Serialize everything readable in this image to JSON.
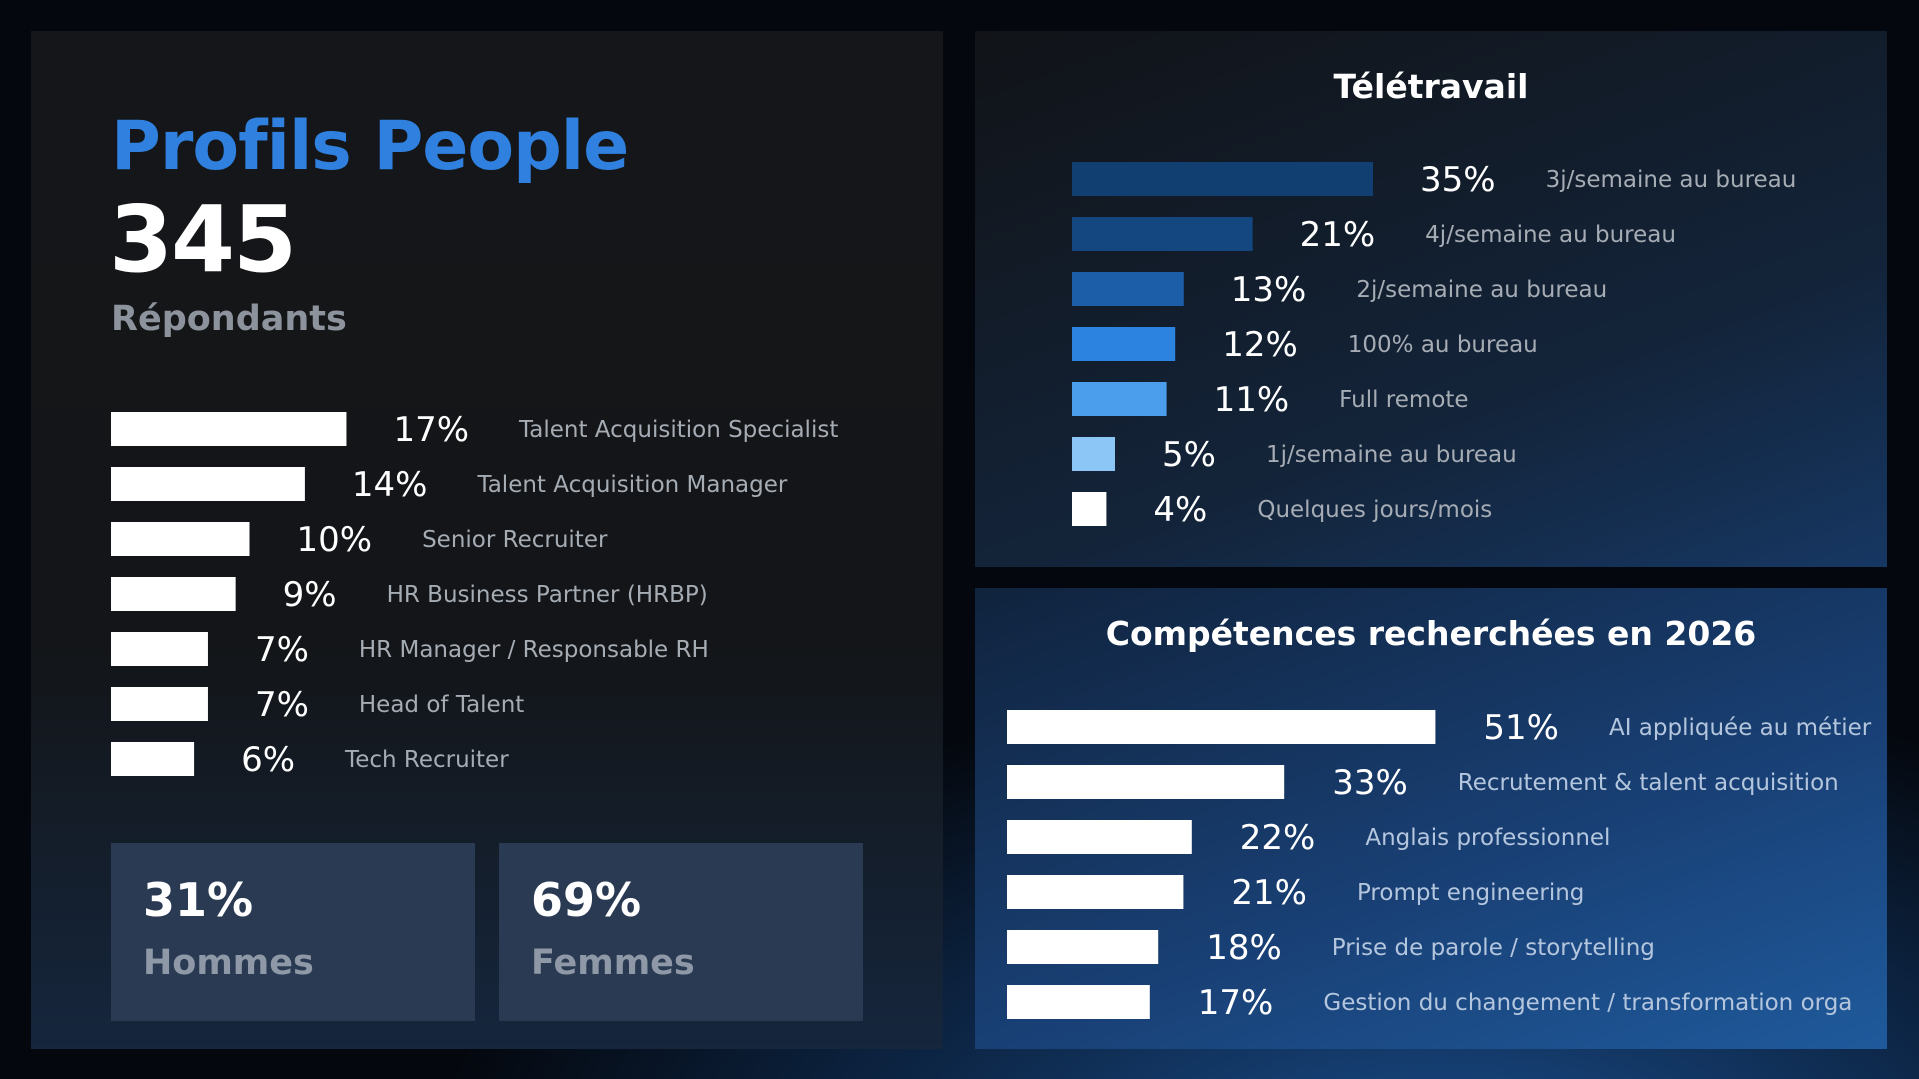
{
  "profiles": {
    "title": "Profils People",
    "count": "345",
    "count_label": "Répondants"
  },
  "gender": {
    "men": {
      "pct": "31%",
      "label": "Hommes"
    },
    "women": {
      "pct": "69%",
      "label": "Femmes"
    }
  },
  "colors": {
    "title_blue": "#2f80df",
    "remote_bars": [
      "#123f72",
      "#14467f",
      "#1d5ea8",
      "#2c83e0",
      "#4a9eec",
      "#8cc6f7",
      "#ffffff"
    ]
  },
  "chart_data": [
    {
      "id": "roles",
      "type": "bar",
      "orientation": "horizontal",
      "title": "",
      "categories": [
        "Talent Acquisition Specialist",
        "Talent Acquisition Manager",
        "Senior Recruiter",
        "HR Business Partner (HRBP)",
        "HR Manager / Responsable RH",
        "Head of Talent",
        "Tech Recruiter"
      ],
      "values": [
        17,
        14,
        10,
        9,
        7,
        7,
        6
      ],
      "labels": [
        "17%",
        "14%",
        "10%",
        "9%",
        "7%",
        "7%",
        "6%"
      ],
      "unit": "%"
    },
    {
      "id": "remote",
      "type": "bar",
      "orientation": "horizontal",
      "title": "Télétravail",
      "categories": [
        "3j/semaine au bureau",
        "4j/semaine au bureau",
        "2j/semaine au bureau",
        "100% au bureau",
        "Full remote",
        "1j/semaine au bureau",
        "Quelques jours/mois"
      ],
      "values": [
        35,
        21,
        13,
        12,
        11,
        5,
        4
      ],
      "labels": [
        "35%",
        "21%",
        "13%",
        "12%",
        "11%",
        "5%",
        "4%"
      ],
      "unit": "%"
    },
    {
      "id": "skills",
      "type": "bar",
      "orientation": "horizontal",
      "title": "Compétences recherchées en 2026",
      "categories": [
        "AI appliquée au métier",
        "Recrutement & talent acquisition",
        "Anglais professionnel",
        "Prompt engineering",
        "Prise de parole / storytelling",
        "Gestion du changement / transformation orga"
      ],
      "values": [
        51,
        33,
        22,
        21,
        18,
        17
      ],
      "labels": [
        "51%",
        "33%",
        "22%",
        "21%",
        "18%",
        "17%"
      ],
      "unit": "%"
    }
  ]
}
